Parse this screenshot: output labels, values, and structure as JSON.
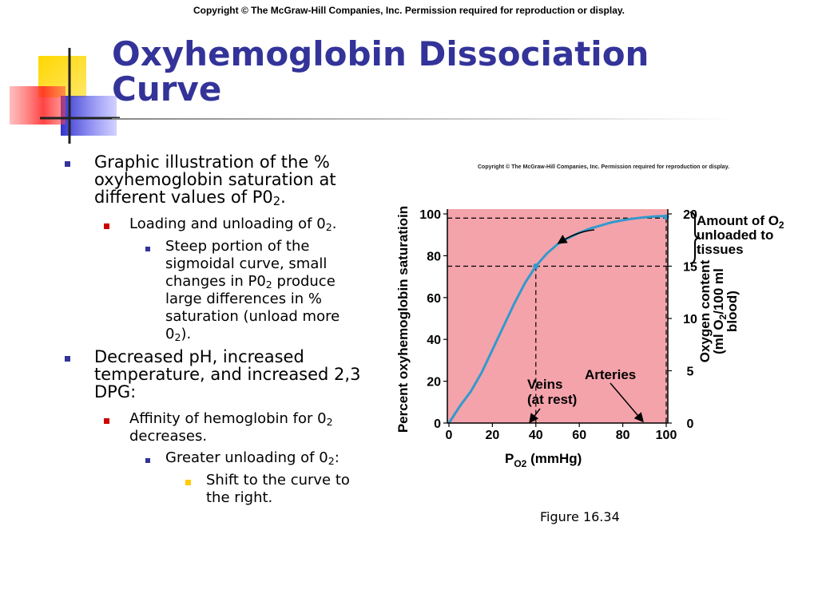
{
  "header": {
    "copyright": "Copyright © The McGraw-Hill Companies, Inc. Permission required for reproduction or display."
  },
  "title": "Oxyhemoglobin Dissociation Curve",
  "bullets": [
    {
      "level": 1,
      "text": "Graphic illustration of the % oxyhemoglobin saturation at different values of P0",
      "sub": "2",
      "tail": "."
    },
    {
      "level": 2,
      "text": "Loading and unloading of 0",
      "sub": "2",
      "tail": "."
    },
    {
      "level": 3,
      "text": "Steep portion of the sigmoidal curve, small changes in P0",
      "sub": "2",
      "tail": " produce large differences in % saturation (unload more 0",
      "sub2": "2",
      "tail2": ")."
    },
    {
      "level": 1,
      "text": "Decreased pH, increased temperature, and increased 2,3 DPG:"
    },
    {
      "level": 2,
      "text": "Affinity of hemoglobin for 0",
      "sub": "2",
      "tail": " decreases."
    },
    {
      "level": 3,
      "text": "Greater unloading of 0",
      "sub": "2",
      "tail": ":"
    },
    {
      "level": 4,
      "text": "Shift to the curve to the right."
    }
  ],
  "chart_copyright": "Copyright © The McGraw-Hill Companies, Inc. Permission required for reproduction or display.",
  "figure_caption": "Figure 16.34",
  "chart_data": {
    "type": "line",
    "title": "",
    "xlabel": "P",
    "xlabel_sub": "O2",
    "xlabel_unit": "(mmHg)",
    "ylabel": "Percent oxyhemoglobin saturatioin",
    "y2label_line1": "Oxygen content",
    "y2label_line2": "(ml O",
    "y2label_sub": "2",
    "y2label_line2_tail": "/100 ml",
    "y2label_line3": "blood)",
    "xlim": [
      0,
      100
    ],
    "ylim": [
      0,
      100
    ],
    "y2lim": [
      0,
      20
    ],
    "x_ticks": [
      "0",
      "20",
      "40",
      "60",
      "80",
      "100"
    ],
    "y_ticks": [
      "0",
      "20",
      "40",
      "60",
      "80",
      "100"
    ],
    "y2_ticks": [
      "0",
      "5",
      "10",
      "15",
      "20"
    ],
    "series": [
      {
        "name": "Oxyhemoglobin saturation",
        "x": [
          0,
          5,
          10,
          15,
          20,
          25,
          30,
          35,
          40,
          45,
          50,
          55,
          60,
          65,
          70,
          75,
          80,
          85,
          90,
          95,
          100
        ],
        "y": [
          0,
          8,
          15,
          24,
          35,
          46,
          57,
          67,
          75,
          81,
          85.5,
          88.5,
          91,
          93,
          94.5,
          96,
          97,
          97.8,
          98.4,
          98.8,
          99
        ]
      }
    ],
    "reference_lines": [
      {
        "type": "h",
        "value": 98
      },
      {
        "type": "h",
        "value": 75
      },
      {
        "type": "v",
        "value": 40
      },
      {
        "type": "v",
        "value": 100
      }
    ],
    "annotations": {
      "veins_line1": "Veins",
      "veins_line2": "(at rest)",
      "arteries": "Arteries",
      "unloaded_line1": "Amount of O",
      "unloaded_sub": "2",
      "unloaded_line2": "unloaded to",
      "unloaded_line3": "tissues"
    },
    "colors": {
      "background": "#f4a3ab",
      "curve": "#3399cc",
      "axis": "#000000"
    }
  }
}
